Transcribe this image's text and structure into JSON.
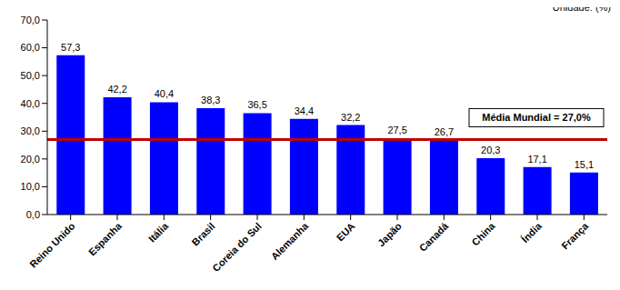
{
  "chart_data": {
    "type": "bar",
    "unit_label": "Unidade: (%)",
    "categories": [
      "Reino Unido",
      "Espanha",
      "Itália",
      "Brasil",
      "Coreia do Sul",
      "Alemanha",
      "EUA",
      "Japão",
      "Canadá",
      "China",
      "Índia",
      "França"
    ],
    "values": [
      57.3,
      42.2,
      40.4,
      38.3,
      36.5,
      34.4,
      32.2,
      27.5,
      26.7,
      20.3,
      17.1,
      15.1
    ],
    "value_labels": [
      "57,3",
      "42,2",
      "40,4",
      "38,3",
      "36,5",
      "34,4",
      "32,2",
      "27,5",
      "26,7",
      "20,3",
      "17,1",
      "15,1"
    ],
    "data_labels": true,
    "color": "#0000ff",
    "ylim": [
      0,
      70
    ],
    "yticks": [
      {
        "value": 0,
        "label": "0,0"
      },
      {
        "value": 10,
        "label": "10,0"
      },
      {
        "value": 20,
        "label": "20,0"
      },
      {
        "value": 30,
        "label": "30,0"
      },
      {
        "value": 40,
        "label": "40,0"
      },
      {
        "value": 50,
        "label": "50,0"
      },
      {
        "value": 60,
        "label": "60,0"
      },
      {
        "value": 70,
        "label": "70,0"
      }
    ],
    "grid": false,
    "reference_line": {
      "value": 27.0,
      "label": "Média Mundial  = 27,0%",
      "color": "#c00000"
    }
  }
}
